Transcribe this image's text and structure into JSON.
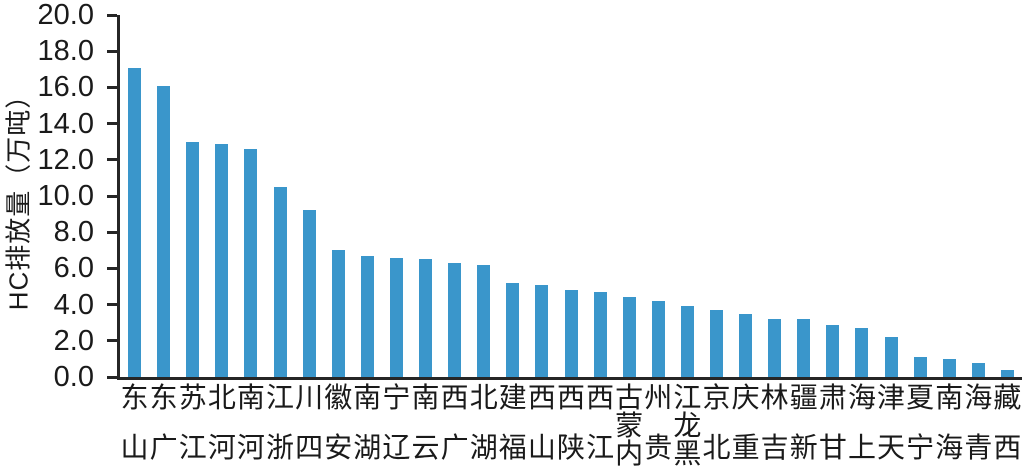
{
  "chart_data": {
    "type": "bar",
    "title": "",
    "xlabel": "",
    "ylabel": "HC排放量（万吨）",
    "ylim": [
      0,
      20
    ],
    "ytick_step": 2.0,
    "ytick_labels": [
      "20.0",
      "18.0",
      "16.0",
      "14.0",
      "12.0",
      "10.0",
      "8.0",
      "6.0",
      "4.0",
      "2.0",
      "0.0"
    ],
    "grid": false,
    "legend": null,
    "bar_color": "#3A96CB",
    "axis_color": "#262626",
    "categories": [
      "山东",
      "广东",
      "江苏",
      "河北",
      "河南",
      "浙江",
      "四川",
      "安徽",
      "湖南",
      "辽宁",
      "云南",
      "广西",
      "湖北",
      "福建",
      "山西",
      "陕西",
      "江西",
      "内蒙古",
      "贵州",
      "黑龙江",
      "北京",
      "重庆",
      "吉林",
      "新疆",
      "甘肃",
      "上海",
      "天津",
      "宁夏",
      "海南",
      "青海",
      "西藏"
    ],
    "values": [
      17.1,
      16.1,
      13.0,
      12.9,
      12.6,
      10.5,
      9.2,
      7.0,
      6.7,
      6.6,
      6.5,
      6.3,
      6.2,
      5.2,
      5.1,
      4.8,
      4.7,
      4.4,
      4.2,
      3.9,
      3.7,
      3.5,
      3.2,
      3.2,
      2.9,
      2.7,
      2.2,
      1.1,
      1.0,
      0.8,
      0.4
    ],
    "x_label_orientation": "vertical-bottom-to-top"
  }
}
